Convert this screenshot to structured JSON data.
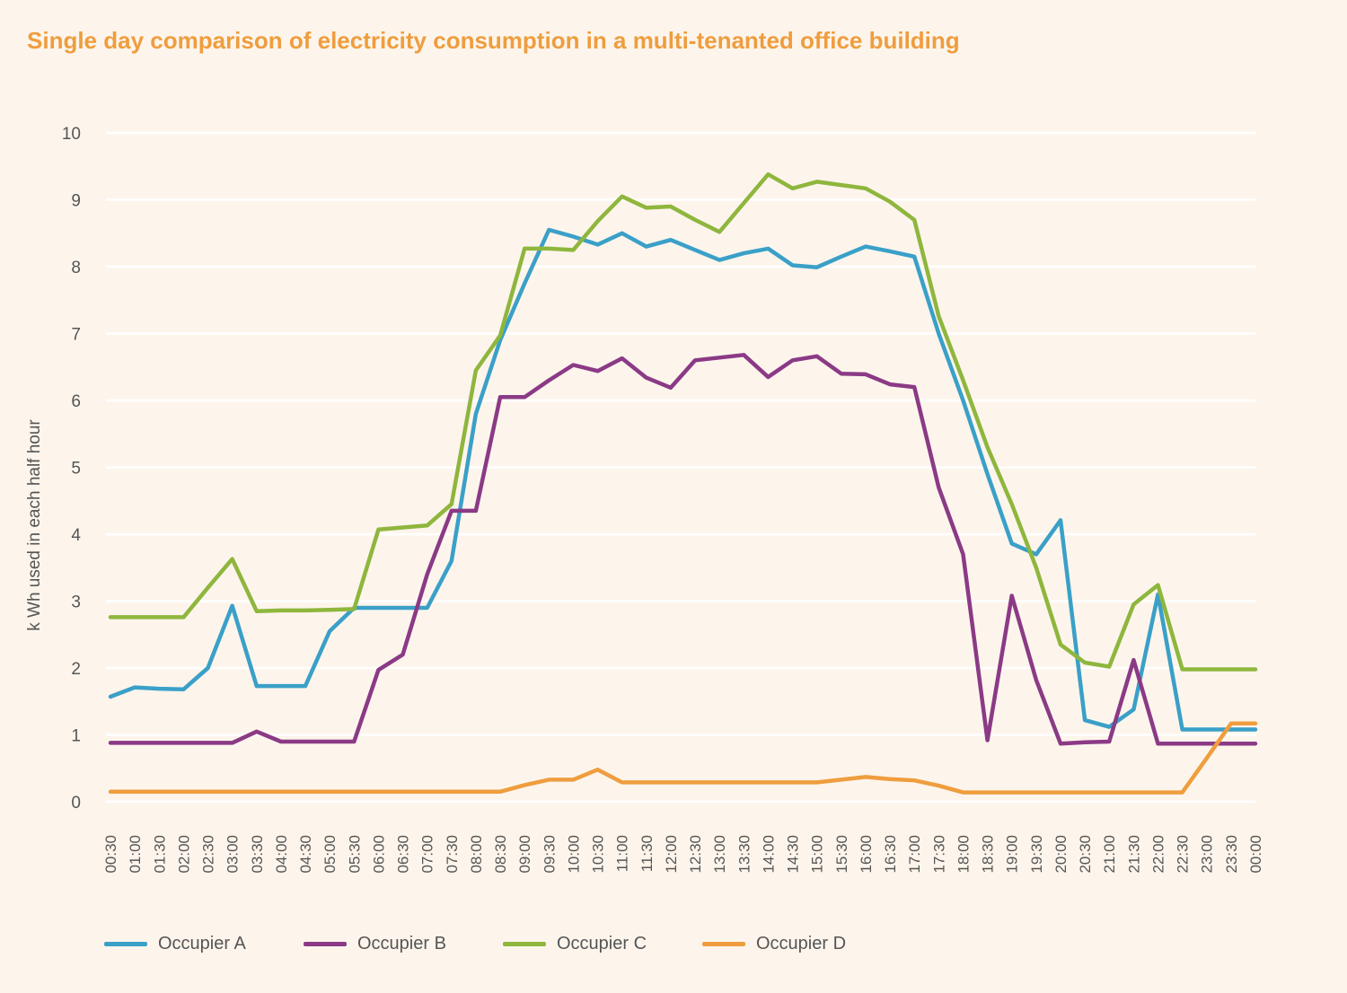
{
  "chart_data": {
    "type": "line",
    "title": "Single day comparison of electricity consumption in a multi-tenanted office building",
    "xlabel": "",
    "ylabel": "k Wh used in each half hour",
    "ylim": [
      0,
      10
    ],
    "yticks": [
      "0",
      "1",
      "2",
      "3",
      "4",
      "5",
      "6",
      "7",
      "8",
      "9",
      "10"
    ],
    "grid": true,
    "legend_position": "bottom",
    "categories": [
      "00:30",
      "01:00",
      "01:30",
      "02:00",
      "02:30",
      "03:00",
      "03:30",
      "04:00",
      "04:30",
      "05:00",
      "05:30",
      "06:00",
      "06:30",
      "07:00",
      "07:30",
      "08:00",
      "08:30",
      "09:00",
      "09:30",
      "10:00",
      "10:30",
      "11:00",
      "11:30",
      "12:00",
      "12:30",
      "13:00",
      "13:30",
      "14:00",
      "14:30",
      "15:00",
      "15:30",
      "16:00",
      "16:30",
      "17:00",
      "17:30",
      "18:00",
      "18:30",
      "19:00",
      "19:30",
      "20:00",
      "20:30",
      "21:00",
      "21:30",
      "22:00",
      "22:30",
      "23:00",
      "23:30",
      "00:00"
    ],
    "series": [
      {
        "name": "Occupier A",
        "color": "#3aa0c8",
        "values": [
          1.57,
          1.71,
          1.69,
          1.68,
          2.0,
          2.93,
          1.73,
          1.73,
          1.73,
          2.55,
          2.9,
          2.9,
          2.9,
          2.9,
          3.6,
          5.8,
          6.9,
          7.75,
          8.55,
          8.45,
          8.33,
          8.5,
          8.3,
          8.4,
          8.25,
          8.1,
          8.2,
          8.27,
          8.02,
          7.99,
          8.15,
          8.3,
          8.23,
          8.15,
          7.0,
          6.0,
          4.9,
          3.86,
          3.7,
          4.21,
          1.22,
          1.12,
          1.38,
          3.1,
          1.08,
          1.08,
          1.08,
          1.08
        ]
      },
      {
        "name": "Occupier B",
        "color": "#8b3a86",
        "values": [
          0.88,
          0.88,
          0.88,
          0.88,
          0.88,
          0.88,
          1.05,
          0.9,
          0.9,
          0.9,
          0.9,
          1.97,
          2.2,
          3.4,
          4.35,
          4.35,
          6.05,
          6.05,
          6.3,
          6.53,
          6.44,
          6.63,
          6.34,
          6.19,
          6.6,
          6.64,
          6.68,
          6.35,
          6.6,
          6.66,
          6.4,
          6.39,
          6.24,
          6.2,
          4.7,
          3.7,
          0.92,
          3.08,
          1.82,
          0.87,
          0.89,
          0.9,
          2.12,
          0.87,
          0.87,
          0.87,
          0.87,
          0.87
        ]
      },
      {
        "name": "Occupier C",
        "color": "#8fb63d",
        "values": [
          2.76,
          2.76,
          2.76,
          2.76,
          3.2,
          3.63,
          2.85,
          2.86,
          2.86,
          2.87,
          2.88,
          4.07,
          4.1,
          4.13,
          4.45,
          6.45,
          6.97,
          8.27,
          8.27,
          8.25,
          8.68,
          9.05,
          8.88,
          8.9,
          8.7,
          8.52,
          8.95,
          9.38,
          9.17,
          9.27,
          9.22,
          9.17,
          8.97,
          8.7,
          7.26,
          6.3,
          5.3,
          4.45,
          3.5,
          2.35,
          2.08,
          2.02,
          2.95,
          3.24,
          1.98,
          1.98,
          1.98,
          1.98
        ]
      },
      {
        "name": "Occupier D",
        "color": "#ef9d3e",
        "values": [
          0.15,
          0.15,
          0.15,
          0.15,
          0.15,
          0.15,
          0.15,
          0.15,
          0.15,
          0.15,
          0.15,
          0.15,
          0.15,
          0.15,
          0.15,
          0.15,
          0.15,
          0.25,
          0.33,
          0.33,
          0.48,
          0.29,
          0.29,
          0.29,
          0.29,
          0.29,
          0.29,
          0.29,
          0.29,
          0.29,
          0.33,
          0.37,
          0.34,
          0.32,
          0.24,
          0.14,
          0.14,
          0.14,
          0.14,
          0.14,
          0.14,
          0.14,
          0.14,
          0.14,
          0.14,
          0.65,
          1.17,
          1.17
        ]
      }
    ]
  }
}
